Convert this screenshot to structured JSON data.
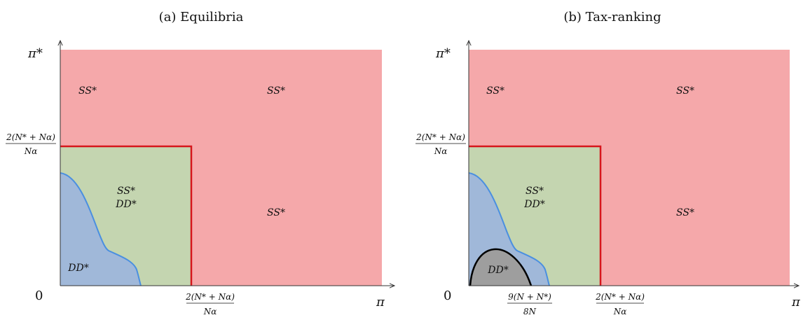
{
  "panels": [
    {
      "title": "(a) Equilibria",
      "y_axis_label": "π*",
      "x_axis_label": "π",
      "origin_label": "0",
      "threshold_y": {
        "numerator": "2(N* + Nα)",
        "denominator": "Nα"
      },
      "threshold_x": {
        "numerator": "2(N* + Nα)",
        "denominator": "Nα"
      },
      "region_labels": {
        "top_left": "SS*",
        "top_right": "SS*",
        "mid_line1": "SS*",
        "mid_line2": "DD*",
        "right": "SS*",
        "bottom_left": "DD*"
      }
    },
    {
      "title": "(b) Tax-ranking",
      "y_axis_label": "π*",
      "x_axis_label": "π",
      "origin_label": "0",
      "threshold_y": {
        "numerator": "2(N* + Nα)",
        "denominator": "Nα"
      },
      "threshold_x": {
        "numerator": "2(N* + Nα)",
        "denominator": "Nα"
      },
      "extra_x_tick": {
        "numerator": "9(N + N*)",
        "denominator": "8N"
      },
      "region_labels": {
        "top_left": "SS*",
        "top_right": "SS*",
        "mid_line1": "SS*",
        "mid_line2": "DD*",
        "right": "SS*",
        "bottom_left": "DD*"
      }
    }
  ],
  "colors": {
    "red_region": "#f5a8aa",
    "green_region": "#c4d5b0",
    "blue_region": "#a0b8d9",
    "gray_region": "#9e9e9e",
    "boundary_red": "#d6161c",
    "boundary_blue": "#4a8fe0",
    "boundary_black": "#000000"
  }
}
